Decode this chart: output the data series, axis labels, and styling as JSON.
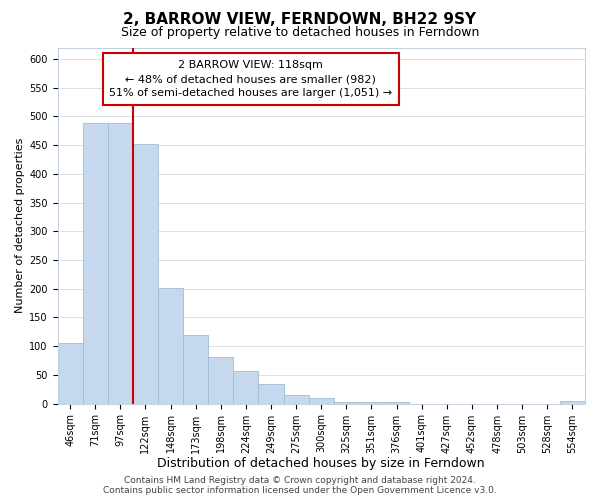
{
  "title": "2, BARROW VIEW, FERNDOWN, BH22 9SY",
  "subtitle": "Size of property relative to detached houses in Ferndown",
  "xlabel": "Distribution of detached houses by size in Ferndown",
  "ylabel": "Number of detached properties",
  "bar_labels": [
    "46sqm",
    "71sqm",
    "97sqm",
    "122sqm",
    "148sqm",
    "173sqm",
    "198sqm",
    "224sqm",
    "249sqm",
    "275sqm",
    "300sqm",
    "325sqm",
    "351sqm",
    "376sqm",
    "401sqm",
    "427sqm",
    "452sqm",
    "478sqm",
    "503sqm",
    "528sqm",
    "554sqm"
  ],
  "bar_heights": [
    105,
    488,
    488,
    452,
    202,
    120,
    82,
    57,
    35,
    15,
    10,
    2,
    2,
    2,
    0,
    0,
    0,
    0,
    0,
    0,
    5
  ],
  "bar_color": "#c5d8ed",
  "bar_edge_color": "#a0bcd8",
  "vline_color": "#cc0000",
  "vline_x": 2.5,
  "annotation_title": "2 BARROW VIEW: 118sqm",
  "annotation_line1": "← 48% of detached houses are smaller (982)",
  "annotation_line2": "51% of semi-detached houses are larger (1,051) →",
  "annotation_box_color": "#ffffff",
  "annotation_box_edge": "#cc0000",
  "ylim": [
    0,
    620
  ],
  "yticks": [
    0,
    50,
    100,
    150,
    200,
    250,
    300,
    350,
    400,
    450,
    500,
    550,
    600
  ],
  "footer_line1": "Contains HM Land Registry data © Crown copyright and database right 2024.",
  "footer_line2": "Contains public sector information licensed under the Open Government Licence v3.0.",
  "background_color": "#ffffff",
  "grid_color": "#d0dce8",
  "title_fontsize": 11,
  "subtitle_fontsize": 9,
  "xlabel_fontsize": 9,
  "ylabel_fontsize": 8,
  "tick_fontsize": 7,
  "annotation_title_fontsize": 9,
  "annotation_body_fontsize": 8,
  "footer_fontsize": 6.5
}
